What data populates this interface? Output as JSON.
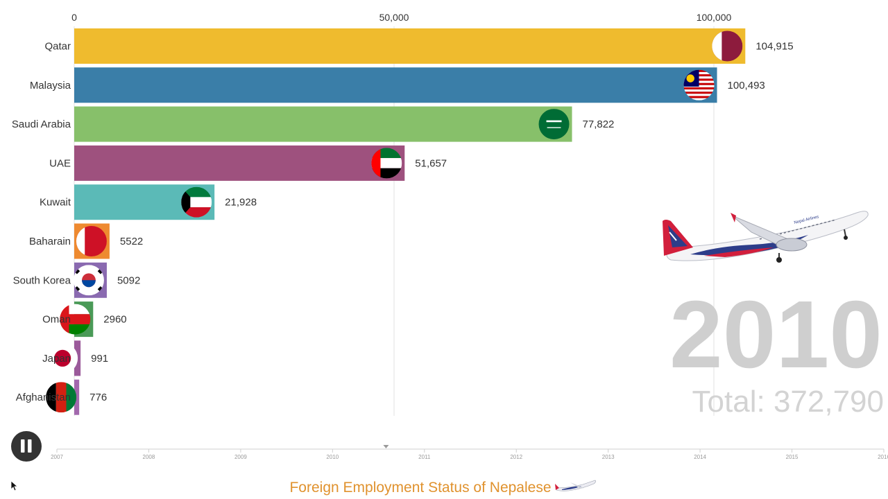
{
  "chart_data": {
    "type": "bar",
    "orientation": "horizontal",
    "categories": [
      "Qatar",
      "Malaysia",
      "Saudi Arabia",
      "UAE",
      "Kuwait",
      "Baharain",
      "South Korea",
      "Oman",
      "Japan",
      "Afghanistan"
    ],
    "values": [
      104915,
      100493,
      77822,
      51657,
      21928,
      5522,
      5092,
      2960,
      991,
      776
    ],
    "value_labels": [
      "104,915",
      "100,493",
      "77,822",
      "51,657",
      "21,928",
      "5522",
      "5092",
      "2960",
      "991",
      "776"
    ],
    "colors": [
      "#efbb2e",
      "#3a7ea8",
      "#87c06a",
      "#9e517e",
      "#5bbab7",
      "#ee8a30",
      "#8a6ab0",
      "#4a9a57",
      "#9b5a9a",
      "#a268ad"
    ],
    "flag_icons": [
      "qatar-flag-icon",
      "malaysia-flag-icon",
      "saudi-arabia-flag-icon",
      "uae-flag-icon",
      "kuwait-flag-icon",
      "bahrain-flag-icon",
      "south-korea-flag-icon",
      "oman-flag-icon",
      "japan-flag-icon",
      "afghanistan-flag-icon"
    ],
    "xlim": [
      0,
      110000
    ],
    "x_ticks": [
      0,
      50000,
      100000
    ],
    "x_tick_labels": [
      "0",
      "50,000",
      "100,000"
    ],
    "grid": true,
    "legend": "none",
    "title": "Foreign Employment Status of Nepalese"
  },
  "year_display": "2010",
  "total_display": "Total: 372,790",
  "footer_title": "Foreign Employment Status of Nepalese",
  "timeline": {
    "years": [
      "2007",
      "2008",
      "2009",
      "2010",
      "2011",
      "2012",
      "2013",
      "2014",
      "2015",
      "2016"
    ],
    "current_fraction": 0.398
  },
  "controls": {
    "pause_icon": "pause-icon",
    "state": "playing"
  },
  "decor": {
    "airplane_icon": "airplane-icon",
    "airline_text": "Nepal Airlines"
  }
}
